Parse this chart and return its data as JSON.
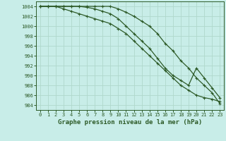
{
  "title": "Graphe pression niveau de la mer (hPa)",
  "background_color": "#c8ede8",
  "grid_color": "#b0d8cc",
  "line_color": "#2d5a27",
  "x_ticks": [
    0,
    1,
    2,
    3,
    4,
    5,
    6,
    7,
    8,
    9,
    10,
    11,
    12,
    13,
    14,
    15,
    16,
    17,
    18,
    19,
    20,
    21,
    22,
    23
  ],
  "y_ticks": [
    984,
    986,
    988,
    990,
    992,
    994,
    996,
    998,
    1000,
    1002,
    1004
  ],
  "ylim": [
    983.0,
    1005.0
  ],
  "xlim": [
    -0.5,
    23.5
  ],
  "line1": [
    1004,
    1004,
    1004,
    1004,
    1004,
    1004,
    1004,
    1004,
    1004,
    1004,
    1003.5,
    1002.8,
    1002,
    1001,
    1000,
    998.5,
    996.5,
    995,
    993,
    991.5,
    989.5,
    988,
    986.5,
    984.3
  ],
  "line2": [
    1004,
    1004,
    1004,
    1003.5,
    1003,
    1002.5,
    1002,
    1001.5,
    1001,
    1000.5,
    999.5,
    998.5,
    997,
    995.5,
    994,
    992.5,
    991,
    989.5,
    988,
    987,
    986,
    985.5,
    985.2,
    984.7
  ],
  "line3": [
    1004,
    1004,
    1004,
    1004,
    1004,
    1004,
    1003.8,
    1003.5,
    1003,
    1002.5,
    1001.5,
    1000,
    998.5,
    997,
    995.5,
    993.5,
    991.5,
    990,
    989,
    988,
    991.5,
    989.5,
    987.5,
    985.5
  ],
  "title_fontsize": 6.5,
  "tick_fontsize": 5.0,
  "linewidth": 0.9,
  "markersize": 2.0
}
